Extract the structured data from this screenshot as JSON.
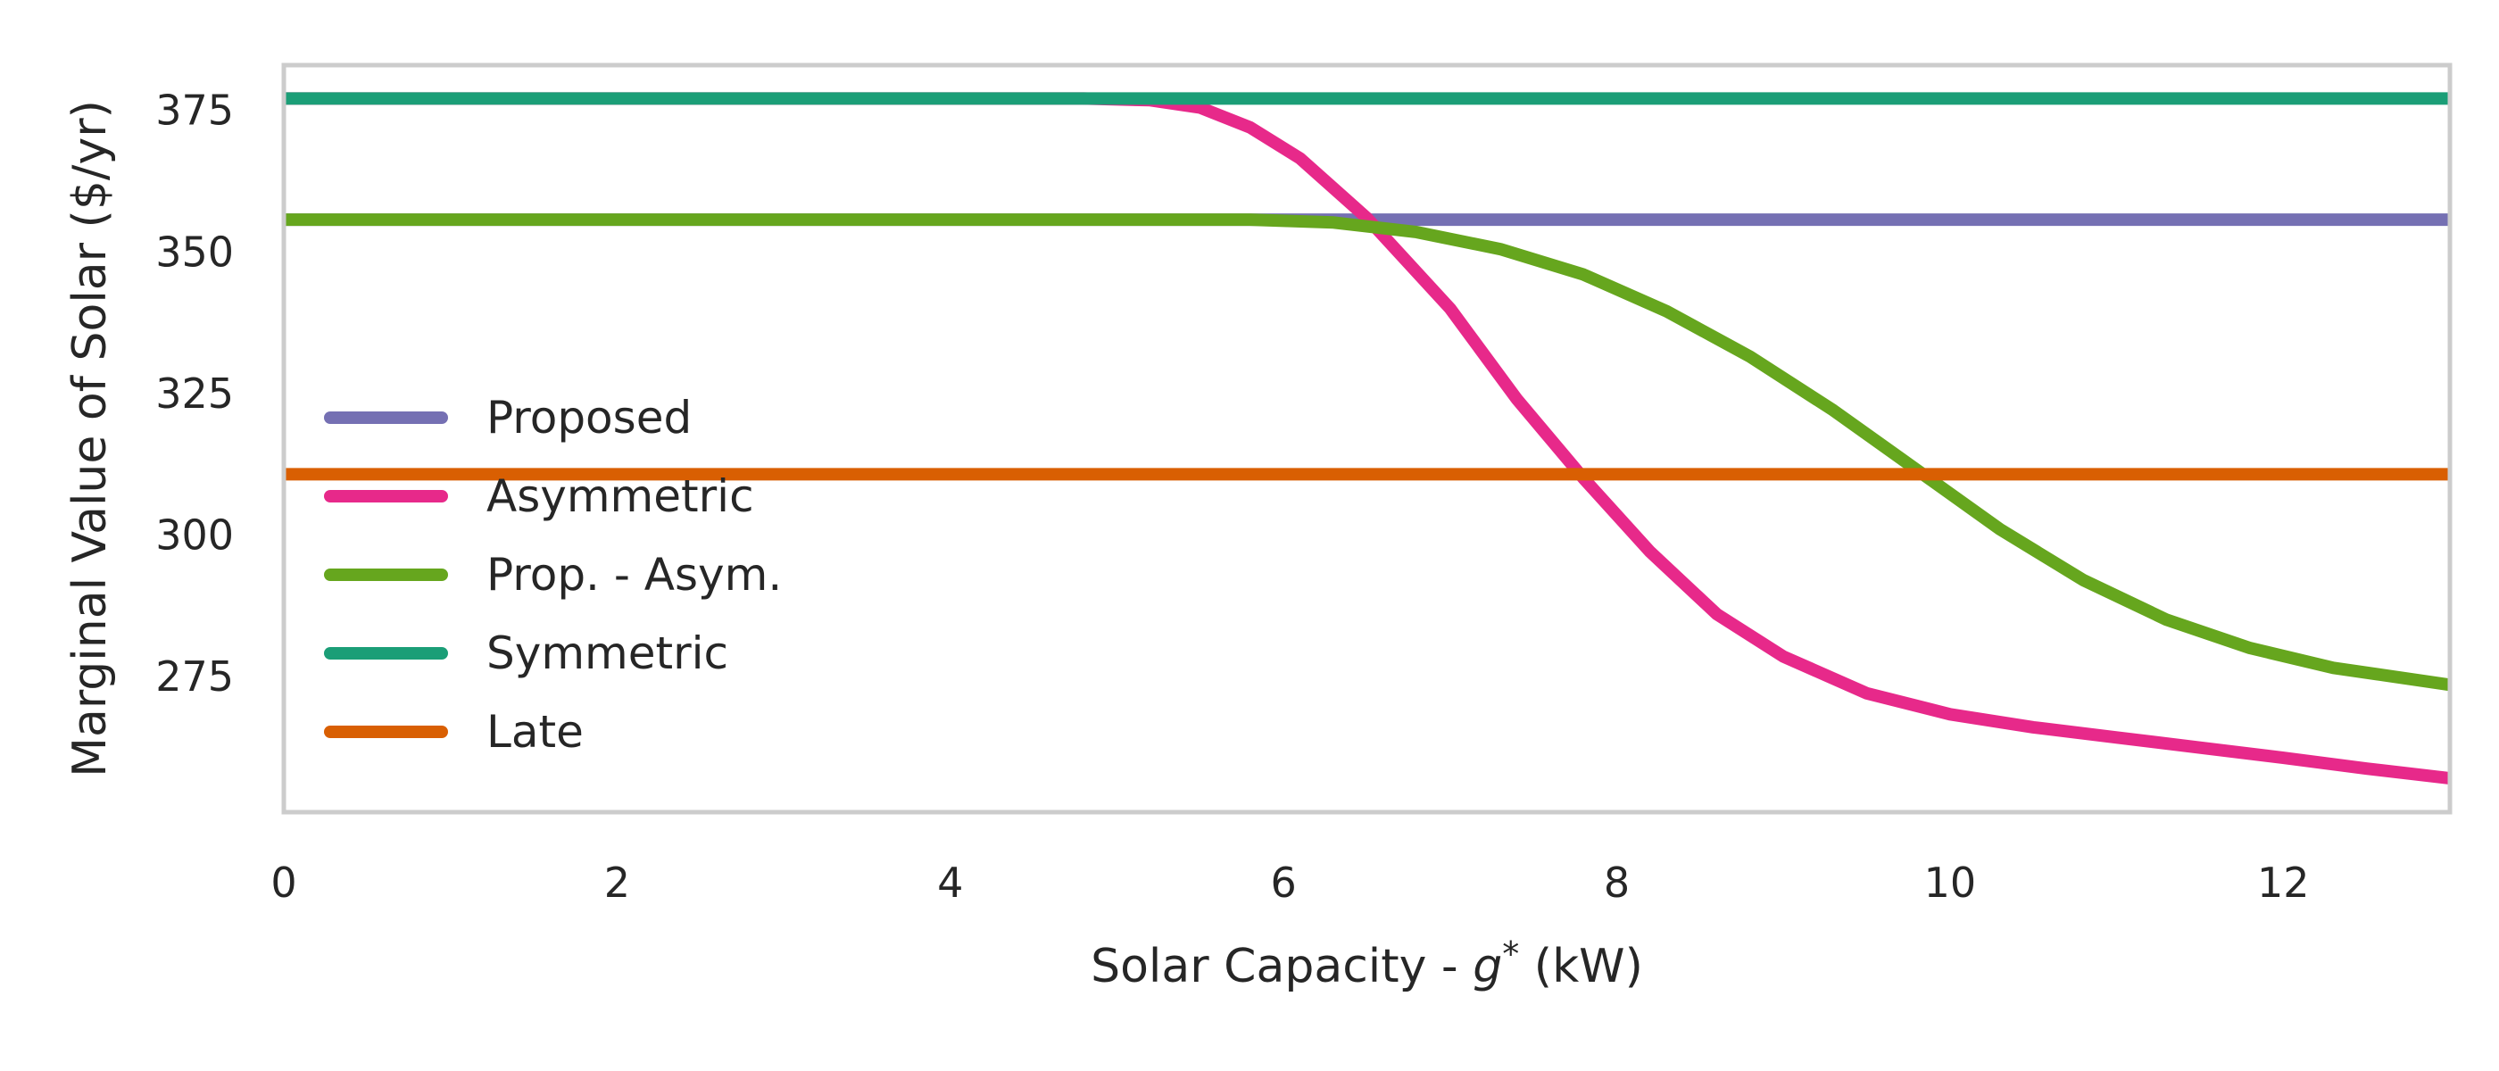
{
  "chart_data": {
    "type": "line",
    "title": "",
    "xlabel_prefix": "Solar Capacity - ",
    "xlabel_var": "g",
    "xlabel_sup": "*",
    "xlabel_suffix": " (kW)",
    "ylabel": "Marginal Value of Solar ($/yr)",
    "xlim": [
      0,
      13
    ],
    "ylim": [
      251,
      383
    ],
    "xticks": [
      0,
      2,
      4,
      6,
      8,
      10,
      12
    ],
    "yticks": [
      275,
      300,
      325,
      350,
      375
    ],
    "grid": false,
    "legend_position": "center-left",
    "series": [
      {
        "name": "Proposed",
        "color": "#7570b3",
        "x": [
          0,
          13
        ],
        "y": [
          355.7,
          355.7
        ]
      },
      {
        "name": "Asymmetric",
        "color": "#e7298a",
        "x": [
          0,
          4.8,
          5.2,
          5.5,
          5.8,
          6.1,
          6.5,
          7.0,
          7.4,
          7.8,
          8.2,
          8.6,
          9.0,
          9.5,
          10.0,
          10.5,
          11.0,
          11.5,
          12.0,
          12.5,
          13.0
        ],
        "y": [
          377.1,
          377.1,
          376.8,
          375.5,
          372.0,
          366.5,
          356.0,
          340.0,
          324.0,
          310.0,
          297.0,
          286.0,
          278.5,
          272.0,
          268.3,
          266.0,
          264.2,
          262.4,
          260.6,
          258.7,
          257.0
        ]
      },
      {
        "name": "Prop. - Asym.",
        "color": "#66a61e",
        "x": [
          0,
          5.8,
          6.3,
          6.8,
          7.3,
          7.8,
          8.3,
          8.8,
          9.3,
          9.8,
          10.3,
          10.8,
          11.3,
          11.8,
          12.3,
          13.0
        ],
        "y": [
          355.7,
          355.7,
          355.2,
          353.5,
          350.5,
          346.0,
          339.5,
          331.5,
          322.0,
          311.5,
          301.0,
          292.0,
          285.0,
          280.0,
          276.5,
          273.5
        ]
      },
      {
        "name": "Symmetric",
        "color": "#1b9e77",
        "x": [
          0,
          13
        ],
        "y": [
          377.1,
          377.1
        ]
      },
      {
        "name": "Late",
        "color": "#d95f02",
        "x": [
          0,
          13
        ],
        "y": [
          310.7,
          310.7
        ]
      }
    ]
  }
}
